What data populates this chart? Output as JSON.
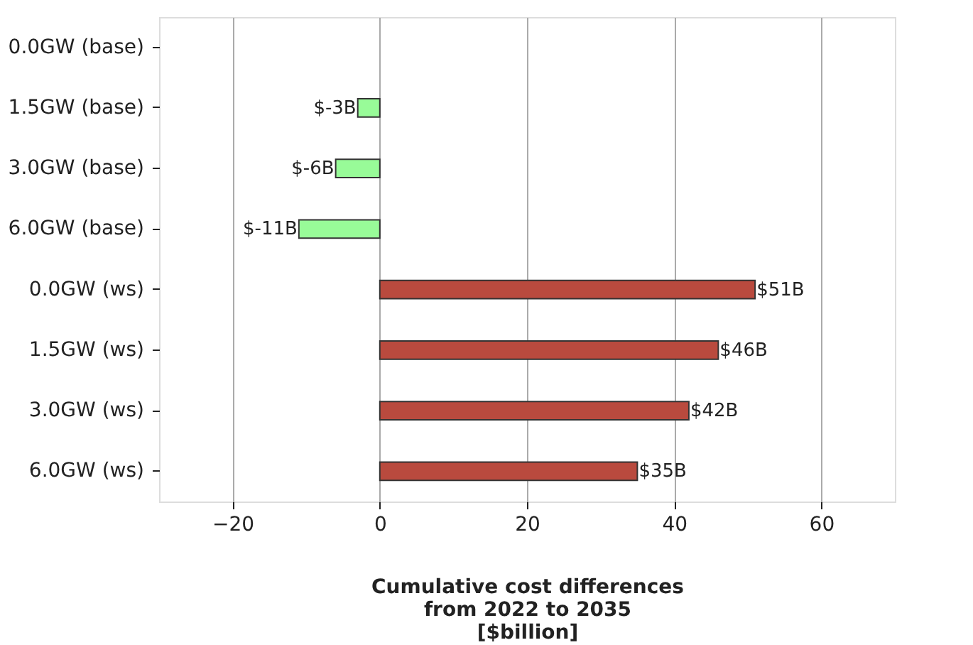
{
  "chart_data": {
    "type": "bar",
    "orientation": "horizontal",
    "categories": [
      "0.0GW (base)",
      "1.5GW (base)",
      "3.0GW (base)",
      "6.0GW (base)",
      "0.0GW (ws)",
      "1.5GW (ws)",
      "3.0GW (ws)",
      "6.0GW (ws)"
    ],
    "values": [
      0,
      -3,
      -6,
      -11,
      51,
      46,
      42,
      35
    ],
    "value_labels": [
      null,
      "$-3B",
      "$-6B",
      "$-11B",
      "$51B",
      "$46B",
      "$42B",
      "$35B"
    ],
    "colors": [
      "#98fb98",
      "#98fb98",
      "#98fb98",
      "#98fb98",
      "#b94a3e",
      "#b94a3e",
      "#b94a3e",
      "#b94a3e"
    ],
    "xlabel": "Cumulative cost differences\nfrom 2022 to 2035\n[$billion]",
    "xlim": [
      -30,
      70
    ],
    "xticks": [
      -20,
      0,
      20,
      40,
      60
    ],
    "grid": "x"
  }
}
